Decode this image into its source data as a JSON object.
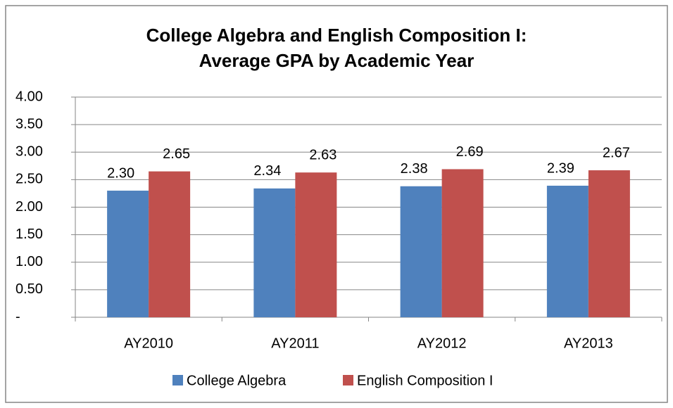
{
  "chart_data": {
    "type": "bar",
    "title": [
      "College Algebra and English Composition I:",
      "Average GPA by Academic Year"
    ],
    "categories": [
      "AY2010",
      "AY2011",
      "AY2012",
      "AY2013"
    ],
    "series": [
      {
        "name": "College Algebra",
        "color": "#4f81bd",
        "values": [
          2.3,
          2.34,
          2.38,
          2.39
        ],
        "value_labels": [
          "2.30",
          "2.34",
          "2.38",
          "2.39"
        ]
      },
      {
        "name": "English Composition I",
        "color": "#c0504d",
        "values": [
          2.65,
          2.63,
          2.69,
          2.67
        ],
        "value_labels": [
          "2.65",
          "2.63",
          "2.69",
          "2.67"
        ]
      }
    ],
    "ylim": [
      0,
      4
    ],
    "yticks": [
      {
        "value": 0,
        "label": "-"
      },
      {
        "value": 0.5,
        "label": "0.50"
      },
      {
        "value": 1,
        "label": "1.00"
      },
      {
        "value": 1.5,
        "label": "1.50"
      },
      {
        "value": 2,
        "label": "2.00"
      },
      {
        "value": 2.5,
        "label": "2.50"
      },
      {
        "value": 3,
        "label": "3.00"
      },
      {
        "value": 3.5,
        "label": "3.50"
      },
      {
        "value": 4,
        "label": "4.00"
      }
    ],
    "grid": true,
    "legend": "bottom"
  }
}
